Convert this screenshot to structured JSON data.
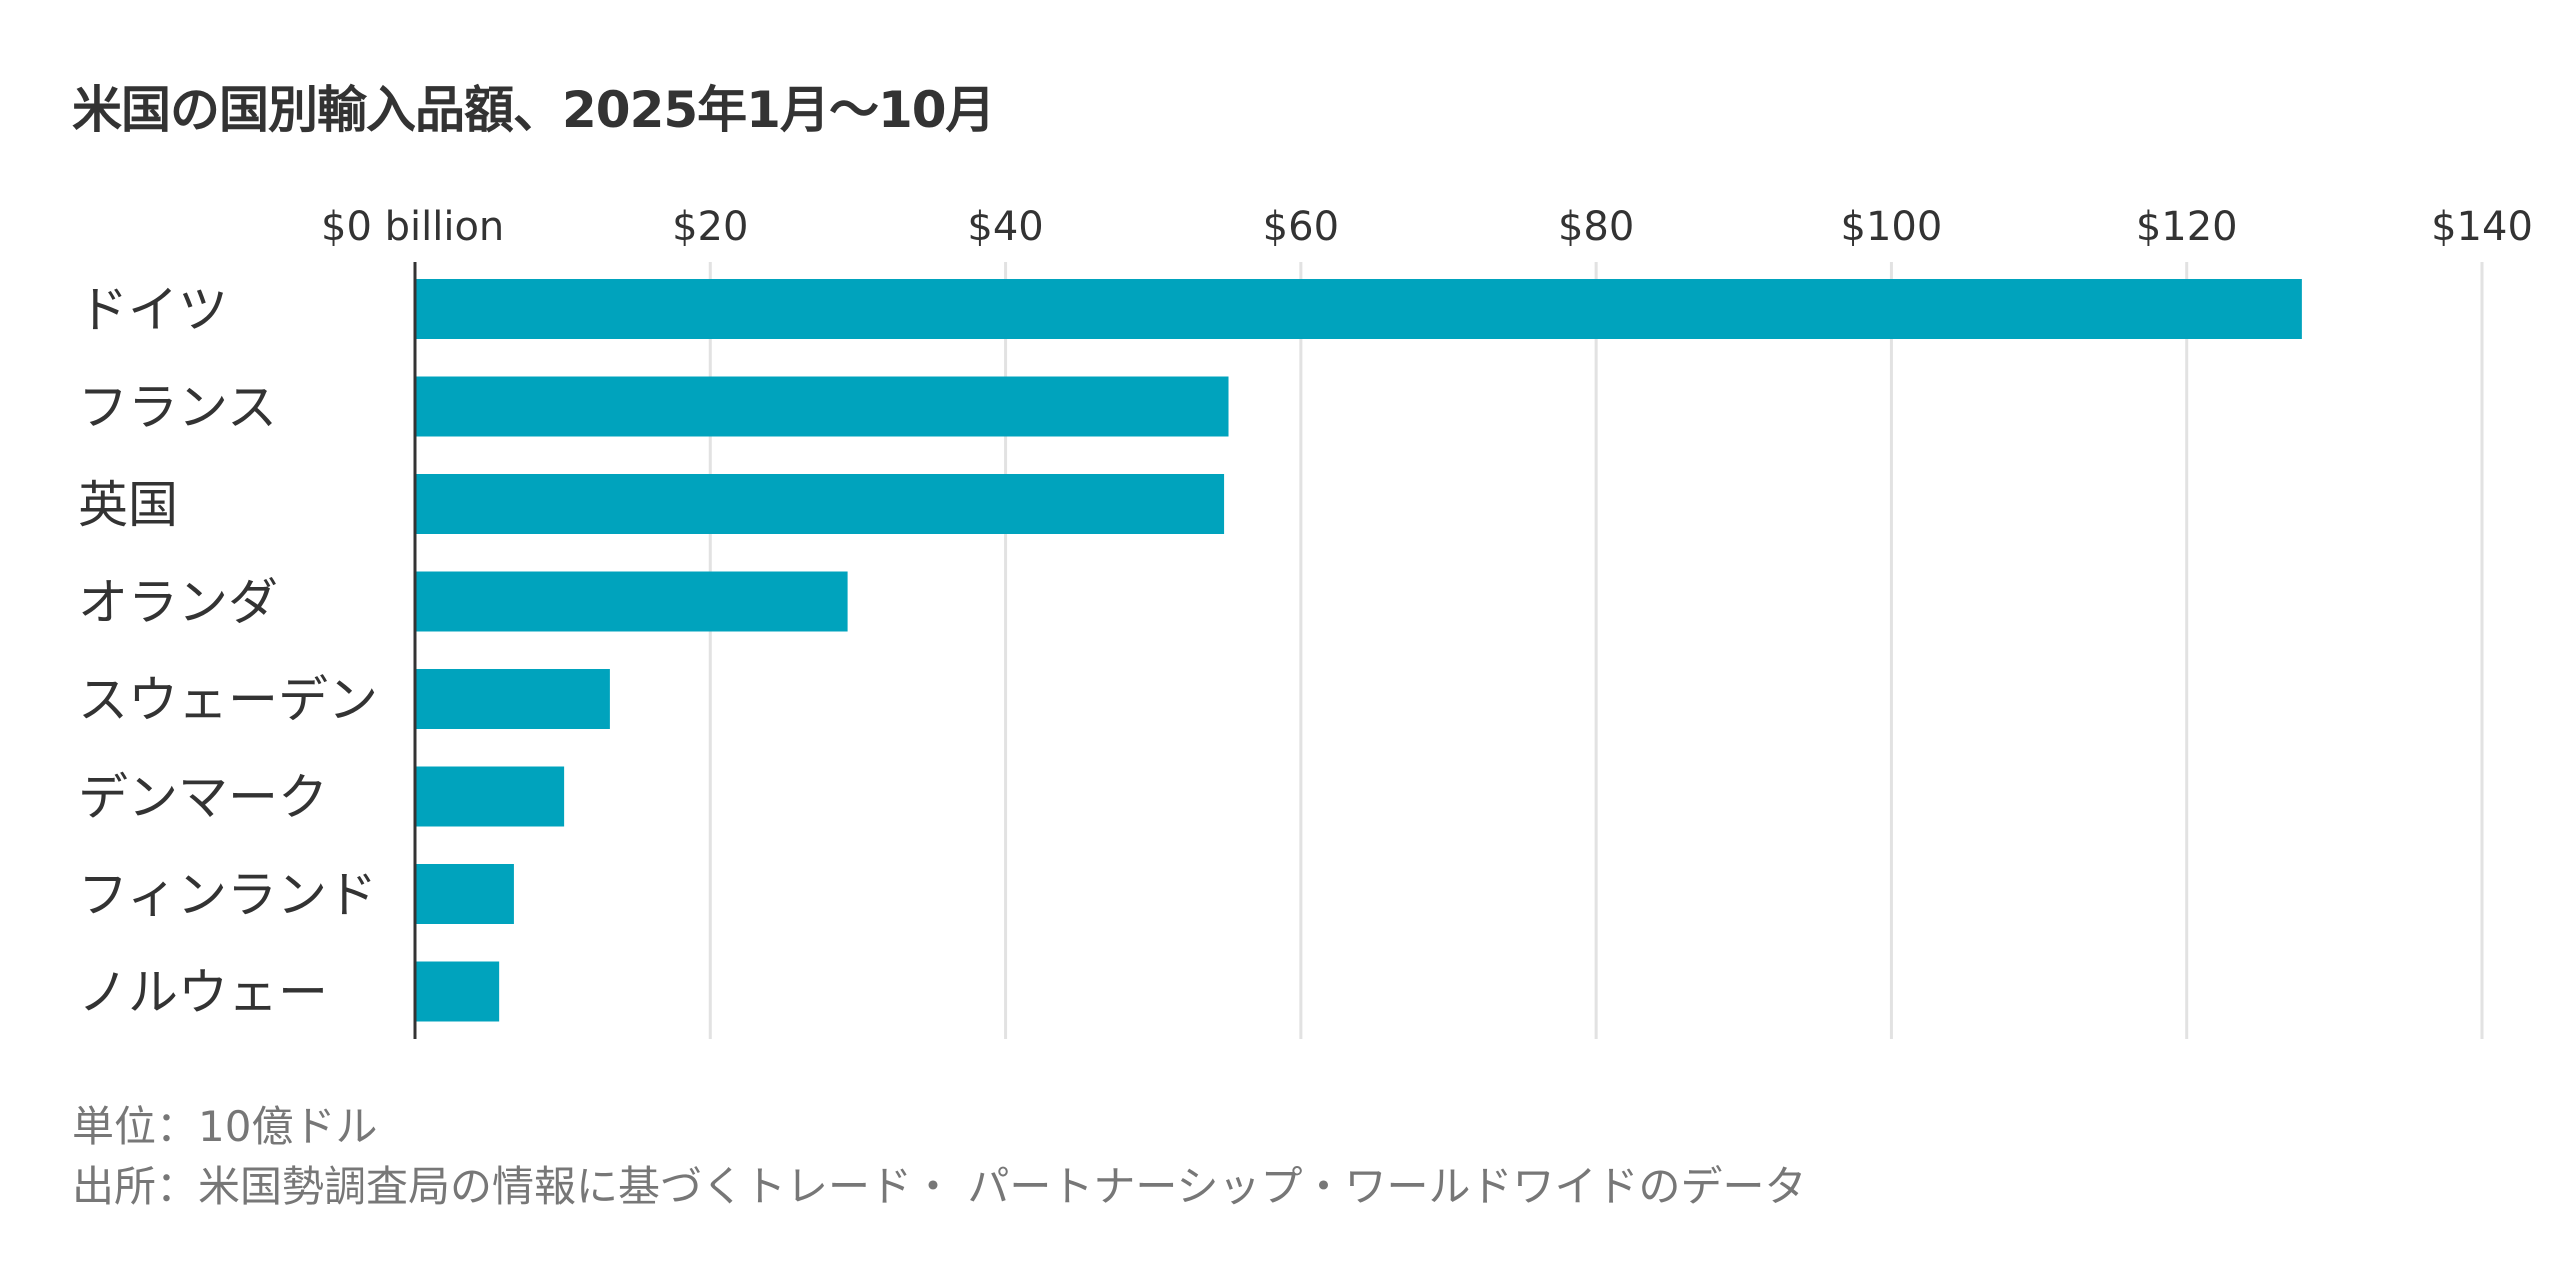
{
  "chart_data": {
    "type": "bar",
    "orientation": "horizontal",
    "title": "米国の国別輸入品額、2025年1月～10月",
    "categories": [
      "ドイツ",
      "フランス",
      "英国",
      "オランダ",
      "スウェーデン",
      "デンマーク",
      "フィンランド",
      "ノルウェー"
    ],
    "values": [
      127.8,
      55.1,
      54.8,
      29.3,
      13.2,
      10.1,
      6.7,
      5.7
    ],
    "xlim": [
      0,
      140
    ],
    "xticks": [
      0,
      20,
      40,
      60,
      80,
      100,
      120,
      140
    ],
    "xtick_labels": [
      "$0 billion",
      "$20",
      "$40",
      "$60",
      "$80",
      "$100",
      "$120",
      "$140"
    ],
    "xlabel": "",
    "ylabel": "",
    "grid": true,
    "bar_color": "#00a3bd"
  },
  "notes": {
    "unit": "単位：10億ドル",
    "source": "出所：米国勢調査局の情報に基づくトレード・ パートナーシップ・ワールドワイドのデータ"
  }
}
